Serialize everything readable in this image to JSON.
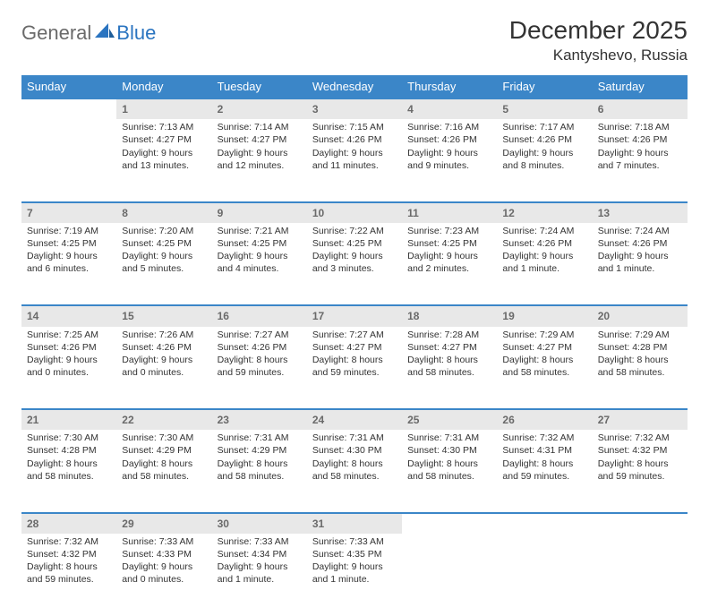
{
  "brand": {
    "part1": "General",
    "part2": "Blue"
  },
  "title": "December 2025",
  "location": "Kantyshevo, Russia",
  "style": {
    "header_bg": "#3b86c8",
    "header_fg": "#ffffff",
    "daynum_bg": "#e8e8e8",
    "daynum_fg": "#6a6a6a",
    "row_border": "#3b86c8",
    "body_fg": "#333333",
    "page_bg": "#ffffff",
    "title_fontsize": 28,
    "subtitle_fontsize": 17,
    "header_fontsize": 13,
    "cell_fontsize": 10.5
  },
  "columns": [
    "Sunday",
    "Monday",
    "Tuesday",
    "Wednesday",
    "Thursday",
    "Friday",
    "Saturday"
  ],
  "weeks": [
    [
      null,
      {
        "n": "1",
        "sunrise": "Sunrise: 7:13 AM",
        "sunset": "Sunset: 4:27 PM",
        "daylight": "Daylight: 9 hours and 13 minutes."
      },
      {
        "n": "2",
        "sunrise": "Sunrise: 7:14 AM",
        "sunset": "Sunset: 4:27 PM",
        "daylight": "Daylight: 9 hours and 12 minutes."
      },
      {
        "n": "3",
        "sunrise": "Sunrise: 7:15 AM",
        "sunset": "Sunset: 4:26 PM",
        "daylight": "Daylight: 9 hours and 11 minutes."
      },
      {
        "n": "4",
        "sunrise": "Sunrise: 7:16 AM",
        "sunset": "Sunset: 4:26 PM",
        "daylight": "Daylight: 9 hours and 9 minutes."
      },
      {
        "n": "5",
        "sunrise": "Sunrise: 7:17 AM",
        "sunset": "Sunset: 4:26 PM",
        "daylight": "Daylight: 9 hours and 8 minutes."
      },
      {
        "n": "6",
        "sunrise": "Sunrise: 7:18 AM",
        "sunset": "Sunset: 4:26 PM",
        "daylight": "Daylight: 9 hours and 7 minutes."
      }
    ],
    [
      {
        "n": "7",
        "sunrise": "Sunrise: 7:19 AM",
        "sunset": "Sunset: 4:25 PM",
        "daylight": "Daylight: 9 hours and 6 minutes."
      },
      {
        "n": "8",
        "sunrise": "Sunrise: 7:20 AM",
        "sunset": "Sunset: 4:25 PM",
        "daylight": "Daylight: 9 hours and 5 minutes."
      },
      {
        "n": "9",
        "sunrise": "Sunrise: 7:21 AM",
        "sunset": "Sunset: 4:25 PM",
        "daylight": "Daylight: 9 hours and 4 minutes."
      },
      {
        "n": "10",
        "sunrise": "Sunrise: 7:22 AM",
        "sunset": "Sunset: 4:25 PM",
        "daylight": "Daylight: 9 hours and 3 minutes."
      },
      {
        "n": "11",
        "sunrise": "Sunrise: 7:23 AM",
        "sunset": "Sunset: 4:25 PM",
        "daylight": "Daylight: 9 hours and 2 minutes."
      },
      {
        "n": "12",
        "sunrise": "Sunrise: 7:24 AM",
        "sunset": "Sunset: 4:26 PM",
        "daylight": "Daylight: 9 hours and 1 minute."
      },
      {
        "n": "13",
        "sunrise": "Sunrise: 7:24 AM",
        "sunset": "Sunset: 4:26 PM",
        "daylight": "Daylight: 9 hours and 1 minute."
      }
    ],
    [
      {
        "n": "14",
        "sunrise": "Sunrise: 7:25 AM",
        "sunset": "Sunset: 4:26 PM",
        "daylight": "Daylight: 9 hours and 0 minutes."
      },
      {
        "n": "15",
        "sunrise": "Sunrise: 7:26 AM",
        "sunset": "Sunset: 4:26 PM",
        "daylight": "Daylight: 9 hours and 0 minutes."
      },
      {
        "n": "16",
        "sunrise": "Sunrise: 7:27 AM",
        "sunset": "Sunset: 4:26 PM",
        "daylight": "Daylight: 8 hours and 59 minutes."
      },
      {
        "n": "17",
        "sunrise": "Sunrise: 7:27 AM",
        "sunset": "Sunset: 4:27 PM",
        "daylight": "Daylight: 8 hours and 59 minutes."
      },
      {
        "n": "18",
        "sunrise": "Sunrise: 7:28 AM",
        "sunset": "Sunset: 4:27 PM",
        "daylight": "Daylight: 8 hours and 58 minutes."
      },
      {
        "n": "19",
        "sunrise": "Sunrise: 7:29 AM",
        "sunset": "Sunset: 4:27 PM",
        "daylight": "Daylight: 8 hours and 58 minutes."
      },
      {
        "n": "20",
        "sunrise": "Sunrise: 7:29 AM",
        "sunset": "Sunset: 4:28 PM",
        "daylight": "Daylight: 8 hours and 58 minutes."
      }
    ],
    [
      {
        "n": "21",
        "sunrise": "Sunrise: 7:30 AM",
        "sunset": "Sunset: 4:28 PM",
        "daylight": "Daylight: 8 hours and 58 minutes."
      },
      {
        "n": "22",
        "sunrise": "Sunrise: 7:30 AM",
        "sunset": "Sunset: 4:29 PM",
        "daylight": "Daylight: 8 hours and 58 minutes."
      },
      {
        "n": "23",
        "sunrise": "Sunrise: 7:31 AM",
        "sunset": "Sunset: 4:29 PM",
        "daylight": "Daylight: 8 hours and 58 minutes."
      },
      {
        "n": "24",
        "sunrise": "Sunrise: 7:31 AM",
        "sunset": "Sunset: 4:30 PM",
        "daylight": "Daylight: 8 hours and 58 minutes."
      },
      {
        "n": "25",
        "sunrise": "Sunrise: 7:31 AM",
        "sunset": "Sunset: 4:30 PM",
        "daylight": "Daylight: 8 hours and 58 minutes."
      },
      {
        "n": "26",
        "sunrise": "Sunrise: 7:32 AM",
        "sunset": "Sunset: 4:31 PM",
        "daylight": "Daylight: 8 hours and 59 minutes."
      },
      {
        "n": "27",
        "sunrise": "Sunrise: 7:32 AM",
        "sunset": "Sunset: 4:32 PM",
        "daylight": "Daylight: 8 hours and 59 minutes."
      }
    ],
    [
      {
        "n": "28",
        "sunrise": "Sunrise: 7:32 AM",
        "sunset": "Sunset: 4:32 PM",
        "daylight": "Daylight: 8 hours and 59 minutes."
      },
      {
        "n": "29",
        "sunrise": "Sunrise: 7:33 AM",
        "sunset": "Sunset: 4:33 PM",
        "daylight": "Daylight: 9 hours and 0 minutes."
      },
      {
        "n": "30",
        "sunrise": "Sunrise: 7:33 AM",
        "sunset": "Sunset: 4:34 PM",
        "daylight": "Daylight: 9 hours and 1 minute."
      },
      {
        "n": "31",
        "sunrise": "Sunrise: 7:33 AM",
        "sunset": "Sunset: 4:35 PM",
        "daylight": "Daylight: 9 hours and 1 minute."
      },
      null,
      null,
      null
    ]
  ]
}
